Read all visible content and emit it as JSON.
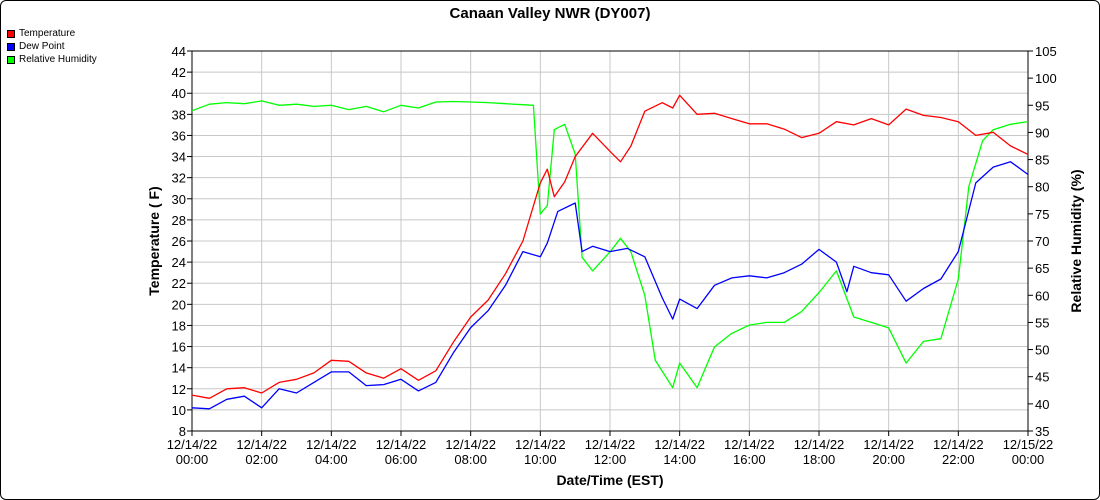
{
  "chart_data": {
    "type": "line",
    "title": "Canaan Valley NWR (DY007)",
    "xlabel": "Date/Time (EST)",
    "ylabel": "Temperature ( F)",
    "y2label": "Relative Humidity (%)",
    "ylim": [
      8,
      44
    ],
    "y2lim": [
      35,
      105
    ],
    "yticks": [
      8,
      10,
      12,
      14,
      16,
      18,
      20,
      22,
      24,
      26,
      28,
      30,
      32,
      34,
      36,
      38,
      40,
      42,
      44
    ],
    "y2ticks": [
      35,
      40,
      45,
      50,
      55,
      60,
      65,
      70,
      75,
      80,
      85,
      90,
      95,
      100,
      105
    ],
    "xticks": [
      {
        "date": "12/14/22",
        "time": "00:00"
      },
      {
        "date": "12/14/22",
        "time": "02:00"
      },
      {
        "date": "12/14/22",
        "time": "04:00"
      },
      {
        "date": "12/14/22",
        "time": "06:00"
      },
      {
        "date": "12/14/22",
        "time": "08:00"
      },
      {
        "date": "12/14/22",
        "time": "10:00"
      },
      {
        "date": "12/14/22",
        "time": "12:00"
      },
      {
        "date": "12/14/22",
        "time": "14:00"
      },
      {
        "date": "12/14/22",
        "time": "16:00"
      },
      {
        "date": "12/14/22",
        "time": "18:00"
      },
      {
        "date": "12/14/22",
        "time": "20:00"
      },
      {
        "date": "12/14/22",
        "time": "22:00"
      },
      {
        "date": "12/15/22",
        "time": "00:00"
      }
    ],
    "grid": true,
    "legend_position": "top-left",
    "series": [
      {
        "name": "Temperature",
        "color": "#ff0000",
        "axis": "left",
        "points": [
          [
            0,
            11.4
          ],
          [
            0.5,
            11.1
          ],
          [
            1,
            12.0
          ],
          [
            1.5,
            12.1
          ],
          [
            2,
            11.6
          ],
          [
            2.5,
            12.6
          ],
          [
            3,
            12.9
          ],
          [
            3.5,
            13.5
          ],
          [
            4,
            14.7
          ],
          [
            4.5,
            14.6
          ],
          [
            5,
            13.5
          ],
          [
            5.5,
            13.0
          ],
          [
            6,
            13.9
          ],
          [
            6.5,
            12.8
          ],
          [
            7,
            13.7
          ],
          [
            7.5,
            16.4
          ],
          [
            8,
            18.8
          ],
          [
            8.5,
            20.4
          ],
          [
            9,
            22.9
          ],
          [
            9.5,
            26.0
          ],
          [
            10,
            31.5
          ],
          [
            10.2,
            32.8
          ],
          [
            10.4,
            30.2
          ],
          [
            10.7,
            31.6
          ],
          [
            11,
            34.0
          ],
          [
            11.5,
            36.2
          ],
          [
            12,
            34.5
          ],
          [
            12.3,
            33.5
          ],
          [
            12.6,
            35.0
          ],
          [
            13,
            38.3
          ],
          [
            13.5,
            39.1
          ],
          [
            13.8,
            38.6
          ],
          [
            14,
            39.8
          ],
          [
            14.5,
            38.0
          ],
          [
            15,
            38.1
          ],
          [
            15.5,
            37.6
          ],
          [
            16,
            37.1
          ],
          [
            16.5,
            37.1
          ],
          [
            17,
            36.6
          ],
          [
            17.5,
            35.8
          ],
          [
            18,
            36.2
          ],
          [
            18.5,
            37.3
          ],
          [
            19,
            37.0
          ],
          [
            19.5,
            37.6
          ],
          [
            20,
            37.0
          ],
          [
            20.5,
            38.5
          ],
          [
            21,
            37.9
          ],
          [
            21.5,
            37.7
          ],
          [
            22,
            37.3
          ],
          [
            22.5,
            36.0
          ],
          [
            23,
            36.3
          ],
          [
            23.5,
            35.0
          ],
          [
            24,
            34.2
          ]
        ]
      },
      {
        "name": "Dew Point",
        "color": "#0000ff",
        "axis": "left",
        "points": [
          [
            0,
            10.2
          ],
          [
            0.5,
            10.1
          ],
          [
            1,
            11.0
          ],
          [
            1.5,
            11.3
          ],
          [
            2,
            10.2
          ],
          [
            2.5,
            12.0
          ],
          [
            3,
            11.6
          ],
          [
            3.5,
            12.6
          ],
          [
            4,
            13.6
          ],
          [
            4.5,
            13.6
          ],
          [
            5,
            12.3
          ],
          [
            5.5,
            12.4
          ],
          [
            6,
            12.9
          ],
          [
            6.5,
            11.8
          ],
          [
            7,
            12.6
          ],
          [
            7.5,
            15.4
          ],
          [
            8,
            17.8
          ],
          [
            8.5,
            19.4
          ],
          [
            9,
            21.8
          ],
          [
            9.5,
            25.0
          ],
          [
            10,
            24.5
          ],
          [
            10.2,
            25.8
          ],
          [
            10.5,
            28.8
          ],
          [
            11,
            29.6
          ],
          [
            11.2,
            25.0
          ],
          [
            11.5,
            25.5
          ],
          [
            12,
            25.0
          ],
          [
            12.5,
            25.3
          ],
          [
            13,
            24.5
          ],
          [
            13.5,
            20.6
          ],
          [
            13.8,
            18.6
          ],
          [
            14,
            20.5
          ],
          [
            14.5,
            19.6
          ],
          [
            15,
            21.8
          ],
          [
            15.5,
            22.5
          ],
          [
            16,
            22.7
          ],
          [
            16.5,
            22.5
          ],
          [
            17,
            23.0
          ],
          [
            17.5,
            23.8
          ],
          [
            18,
            25.2
          ],
          [
            18.5,
            24.0
          ],
          [
            18.8,
            21.2
          ],
          [
            19,
            23.6
          ],
          [
            19.5,
            23.0
          ],
          [
            20,
            22.8
          ],
          [
            20.5,
            20.3
          ],
          [
            21,
            21.5
          ],
          [
            21.5,
            22.4
          ],
          [
            22,
            25.0
          ],
          [
            22.5,
            31.5
          ],
          [
            23,
            33.0
          ],
          [
            23.5,
            33.5
          ],
          [
            24,
            32.3
          ]
        ]
      },
      {
        "name": "Relative Humidity",
        "color": "#00ff00",
        "axis": "right",
        "points": [
          [
            0,
            94.0
          ],
          [
            0.5,
            95.2
          ],
          [
            1,
            95.5
          ],
          [
            1.5,
            95.3
          ],
          [
            2,
            95.8
          ],
          [
            2.5,
            95.0
          ],
          [
            3,
            95.2
          ],
          [
            3.5,
            94.8
          ],
          [
            4,
            95.0
          ],
          [
            4.5,
            94.2
          ],
          [
            5,
            94.8
          ],
          [
            5.5,
            93.8
          ],
          [
            6,
            95.0
          ],
          [
            6.5,
            94.5
          ],
          [
            7,
            95.6
          ],
          [
            7.5,
            95.7
          ],
          [
            8,
            95.6
          ],
          [
            8.5,
            95.5
          ],
          [
            9,
            95.3
          ],
          [
            9.5,
            95.1
          ],
          [
            9.8,
            95.0
          ],
          [
            10,
            75.0
          ],
          [
            10.2,
            76.5
          ],
          [
            10.4,
            90.5
          ],
          [
            10.7,
            91.5
          ],
          [
            11,
            86.0
          ],
          [
            11.2,
            67.0
          ],
          [
            11.5,
            64.5
          ],
          [
            12,
            68.0
          ],
          [
            12.3,
            70.5
          ],
          [
            12.6,
            68.0
          ],
          [
            13,
            60.0
          ],
          [
            13.3,
            48.0
          ],
          [
            13.8,
            43.0
          ],
          [
            14,
            47.5
          ],
          [
            14.5,
            43.0
          ],
          [
            15,
            50.5
          ],
          [
            15.5,
            53.0
          ],
          [
            16,
            54.5
          ],
          [
            16.5,
            55.0
          ],
          [
            17,
            55.0
          ],
          [
            17.5,
            57.0
          ],
          [
            18,
            60.5
          ],
          [
            18.5,
            64.5
          ],
          [
            19,
            56.0
          ],
          [
            19.5,
            55.0
          ],
          [
            20,
            54.0
          ],
          [
            20.5,
            47.5
          ],
          [
            21,
            51.5
          ],
          [
            21.5,
            52.0
          ],
          [
            22,
            63.0
          ],
          [
            22.3,
            80.0
          ],
          [
            22.7,
            88.5
          ],
          [
            23,
            90.5
          ],
          [
            23.5,
            91.5
          ],
          [
            24,
            92.0
          ]
        ]
      }
    ]
  },
  "legend": {
    "items": [
      {
        "label": "Temperature",
        "color": "#ff0000"
      },
      {
        "label": "Dew Point",
        "color": "#0000ff"
      },
      {
        "label": "Relative Humidity",
        "color": "#00ff00"
      }
    ]
  }
}
